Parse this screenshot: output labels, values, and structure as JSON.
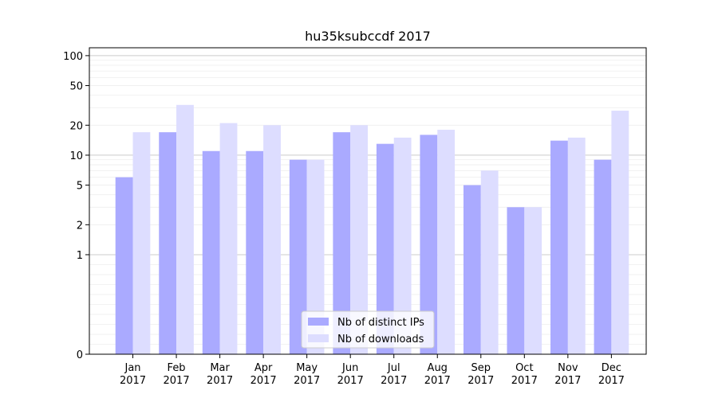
{
  "chart_data": {
    "type": "bar",
    "title": "hu35ksubccdf 2017",
    "xlabel": "",
    "ylabel": "",
    "scale": "symlog",
    "ylim": [
      0,
      120
    ],
    "y_ticks": [
      0,
      1,
      2,
      5,
      10,
      20,
      50,
      100
    ],
    "y_tick_labels": [
      "0",
      "1",
      "2",
      "5",
      "10",
      "20",
      "50",
      "100"
    ],
    "categories": [
      "Jan\n2017",
      "Feb\n2017",
      "Mar\n2017",
      "Apr\n2017",
      "May\n2017",
      "Jun\n2017",
      "Jul\n2017",
      "Aug\n2017",
      "Sep\n2017",
      "Oct\n2017",
      "Nov\n2017",
      "Dec\n2017"
    ],
    "category_lines": [
      [
        "Jan",
        "2017"
      ],
      [
        "Feb",
        "2017"
      ],
      [
        "Mar",
        "2017"
      ],
      [
        "Apr",
        "2017"
      ],
      [
        "May",
        "2017"
      ],
      [
        "Jun",
        "2017"
      ],
      [
        "Jul",
        "2017"
      ],
      [
        "Aug",
        "2017"
      ],
      [
        "Sep",
        "2017"
      ],
      [
        "Oct",
        "2017"
      ],
      [
        "Nov",
        "2017"
      ],
      [
        "Dec",
        "2017"
      ]
    ],
    "series": [
      {
        "name": "Nb of distinct IPs",
        "color": "#aaaaff",
        "values": [
          6,
          17,
          11,
          11,
          9,
          17,
          13,
          16,
          5,
          3,
          14,
          9
        ]
      },
      {
        "name": "Nb of downloads",
        "color": "#ddddff",
        "values": [
          17,
          32,
          21,
          20,
          9,
          20,
          15,
          18,
          7,
          3,
          15,
          28
        ]
      }
    ],
    "grid": true,
    "legend_position": "bottom-center"
  }
}
